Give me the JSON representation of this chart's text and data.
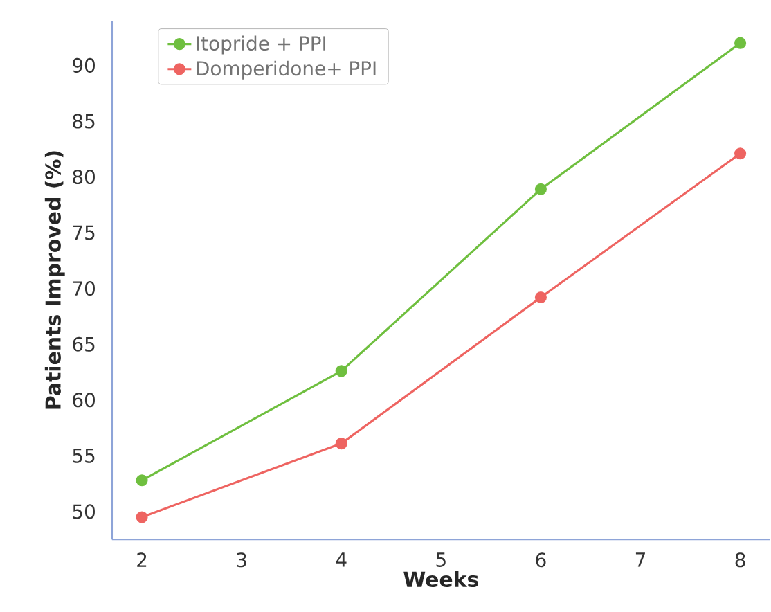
{
  "chart_data": {
    "type": "line",
    "xlabel": "Weeks",
    "ylabel": "Patients Improved (%)",
    "x": [
      2,
      4,
      6,
      8
    ],
    "series": [
      {
        "name": "Itopride + PPI",
        "color": "#6fbf3f",
        "values": [
          52.8,
          62.6,
          78.9,
          92.0
        ]
      },
      {
        "name": "Domperidone+ PPI",
        "color": "#ee6461",
        "values": [
          49.5,
          56.1,
          69.2,
          82.1
        ]
      }
    ],
    "xlim": [
      1.7,
      8.3
    ],
    "ylim": [
      47.5,
      94
    ],
    "xticks": [
      2,
      3,
      4,
      5,
      6,
      7,
      8
    ],
    "yticks": [
      50,
      55,
      60,
      65,
      70,
      75,
      80,
      85,
      90
    ],
    "legend": "top left",
    "marker": "circle",
    "line_style": "solid",
    "grid": false
  }
}
